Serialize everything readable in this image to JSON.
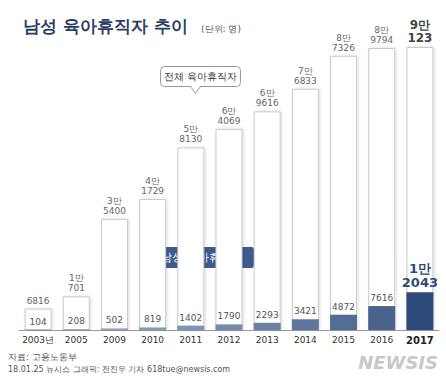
{
  "chart_data": {
    "type": "bar",
    "title": "남성 육아휴직자 추이",
    "subtitle": "(단위: 명)",
    "categories": [
      "2003년",
      "2005",
      "2009",
      "2010",
      "2011",
      "2012",
      "2013",
      "2014",
      "2015",
      "2016",
      "2017"
    ],
    "series": [
      {
        "name": "전체 육아휴직자",
        "color": "#ffffff",
        "values": [
          6816,
          10701,
          35400,
          41729,
          58130,
          64069,
          69616,
          76833,
          87326,
          89794,
          90123
        ],
        "value_labels": [
          "6816",
          "1만 701",
          "3만 5400",
          "4만 1729",
          "5만 8130",
          "6만 4069",
          "6만 9616",
          "7만 6833",
          "8만 7326",
          "8만 9794",
          "9만 123"
        ]
      },
      {
        "name": "남성 육아휴직자",
        "colors": [
          "#8fa3c4",
          "#8fa3c4",
          "#8a9ec0",
          "#8499bc",
          "#7d93b7",
          "#7489ae",
          "#6a80a6",
          "#5f769e",
          "#546b94",
          "#4a628c",
          "#2e4a7a"
        ],
        "values": [
          104,
          208,
          502,
          819,
          1402,
          1790,
          2293,
          3421,
          4872,
          7616,
          12043
        ],
        "value_labels": [
          "104",
          "208",
          "502",
          "819",
          "1402",
          "1790",
          "2293",
          "3421",
          "4872",
          "7616",
          "1만 2043"
        ]
      }
    ],
    "ylim": [
      0,
      100000
    ],
    "tick_labels": "x",
    "data_labels": true,
    "annotations": [
      "자료: 고용노동부",
      "18.01.25 뉴시스 그래픽: 전진우 기자 618tue@newsis.com",
      "NEWSIS"
    ]
  }
}
